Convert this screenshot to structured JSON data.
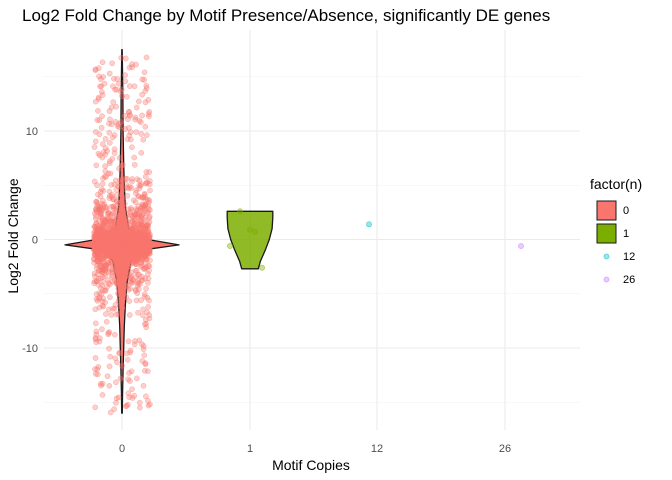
{
  "chart_data": {
    "type": "scatter",
    "title": "Log2 Fold Change by Motif Presence/Absence, significantly DE genes",
    "xlabel": "Motif Copies",
    "ylabel": "Log2 Fold Change",
    "categories": [
      "0",
      "1",
      "12",
      "26"
    ],
    "ylim": [
      -17,
      20
    ],
    "yticks": [
      -10,
      0,
      10
    ],
    "grid": true,
    "legend": {
      "title": "factor(n)",
      "position": "right",
      "entries": [
        "0",
        "1",
        "12",
        "26"
      ]
    },
    "colors": {
      "0": "#F8766D",
      "1": "#7CAE00",
      "12": "#00BFC4",
      "26": "#C77CFF"
    },
    "series": [
      {
        "name": "0",
        "points": "jittered cloud of many genes",
        "range": [
          -16.5,
          16.8
        ],
        "violin": {
          "ymin": -16,
          "ymax": 17.5,
          "profile": [
            [
              -16,
              0.005
            ],
            [
              -14,
              0.01
            ],
            [
              -12,
              0.02
            ],
            [
              -10,
              0.03
            ],
            [
              -8,
              0.04
            ],
            [
              -6,
              0.06
            ],
            [
              -4,
              0.09
            ],
            [
              -2,
              0.16
            ],
            [
              -1,
              0.32
            ],
            [
              -0.5,
              1.0
            ],
            [
              0,
              0.45
            ],
            [
              1,
              0.12
            ],
            [
              2,
              0.09
            ],
            [
              3,
              0.06
            ],
            [
              5,
              0.04
            ],
            [
              7,
              0.03
            ],
            [
              10,
              0.02
            ],
            [
              13,
              0.015
            ],
            [
              15,
              0.01
            ],
            [
              17.5,
              0.004
            ]
          ]
        }
      },
      {
        "name": "1",
        "points": [
          [
            -0.2,
            -0.6
          ],
          [
            -0.1,
            2.6
          ],
          [
            0.05,
            0.7
          ],
          [
            0.12,
            -2.6
          ],
          [
            0.0,
            0.9
          ]
        ],
        "violin": {
          "ymin": -2.7,
          "ymax": 2.6,
          "profile": [
            [
              -2.7,
              0.12
            ],
            [
              -2,
              0.15
            ],
            [
              -1,
              0.22
            ],
            [
              0,
              0.28
            ],
            [
              1,
              0.32
            ],
            [
              2,
              0.33
            ],
            [
              2.6,
              0.33
            ]
          ]
        }
      },
      {
        "name": "12",
        "points": [
          [
            -0.08,
            1.4
          ]
        ]
      },
      {
        "name": "26",
        "points": [
          [
            0.16,
            -0.6
          ]
        ]
      }
    ]
  }
}
